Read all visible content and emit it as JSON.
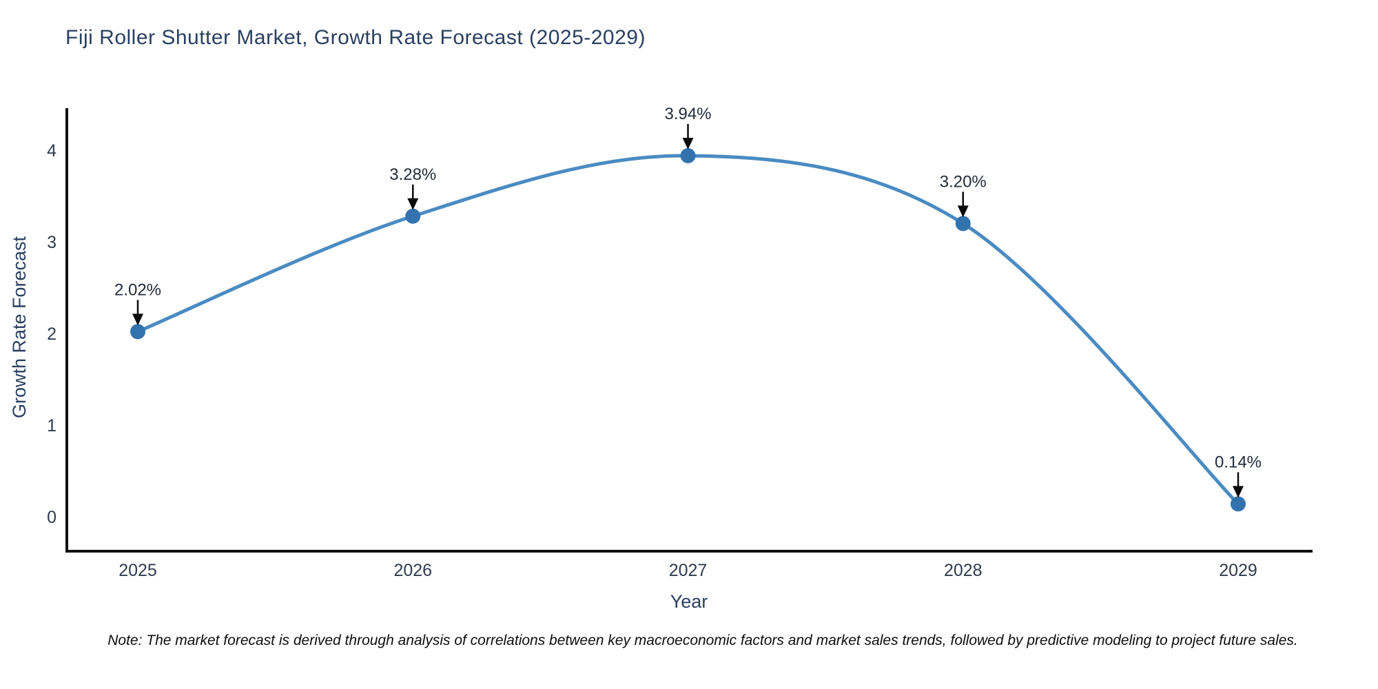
{
  "title": "Fiji Roller Shutter Market, Growth Rate Forecast (2025-2029)",
  "note": "Note: The market forecast is derived through analysis of correlations between key macroeconomic factors and market sales trends, followed by predictive modeling to project future sales.",
  "chart_data": {
    "type": "line",
    "line_shape": "spline",
    "title": "Fiji Roller Shutter Market, Growth Rate Forecast (2025-2029)",
    "xlabel": "Year",
    "ylabel": "Growth Rate Forecast",
    "categories": [
      "2025",
      "2026",
      "2027",
      "2028",
      "2029"
    ],
    "values": [
      2.02,
      3.28,
      3.94,
      3.2,
      0.14
    ],
    "point_labels": [
      "2.02%",
      "3.28%",
      "3.94%",
      "3.20%",
      "0.14%"
    ],
    "yticks": [
      0,
      1,
      2,
      3,
      4
    ],
    "ylim": [
      0,
      4.45
    ],
    "grid": false,
    "legend": "none",
    "annotations": "arrow-down-to-point",
    "colors": {
      "line": "#4a8bc2",
      "marker": "#3273ae",
      "axis": "#101010",
      "title_text": "#2a3f5f",
      "tick_text": "#2f3b4d",
      "annotation_text": "#222c3a",
      "arrow": "#0a0a0a",
      "note_text": "#0d0d0d",
      "background": "#ffffff"
    }
  }
}
